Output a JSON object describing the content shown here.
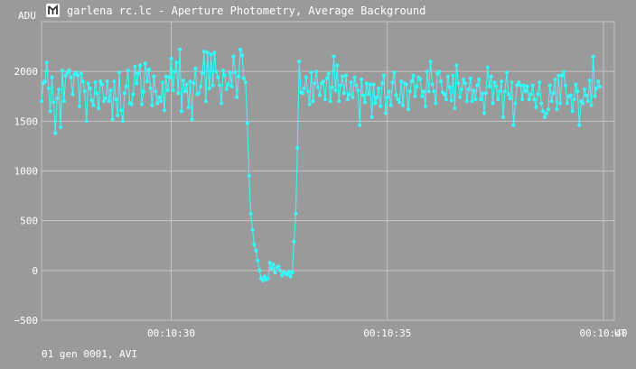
{
  "window": {
    "title": "garlena rc.lc - Aperture Photometry, Average Background",
    "icon": "light-curve-app-icon"
  },
  "footer": {
    "text": "01 gen 0001, AVI"
  },
  "colors": {
    "background": "#9a9a9a",
    "grid": "#c4c4c4",
    "series": "#33ffff",
    "text": "#ffffff"
  },
  "chart_data": {
    "type": "line",
    "title": "garlena rc.lc - Aperture Photometry, Average Background",
    "ylabel": "ADU",
    "xlabel": "UT",
    "ylim": [
      -500,
      2500
    ],
    "yticks": [
      -500,
      0,
      500,
      1000,
      1500,
      2000
    ],
    "xlim_seconds": [
      627.0,
      640.25
    ],
    "xticks": [
      {
        "label": "00:10:30",
        "t": 630
      },
      {
        "label": "00:10:35",
        "t": 635
      },
      {
        "label": "00:10:40",
        "t": 640
      }
    ],
    "grid": true,
    "series": [
      {
        "name": "",
        "t_start_seconds": 627.0,
        "t_step_seconds": 0.04,
        "values": [
          1700,
          1880,
          1900,
          2090,
          1830,
          1600,
          1940,
          1690,
          1380,
          1730,
          1820,
          1440,
          2010,
          1700,
          1960,
          1990,
          2010,
          1940,
          1770,
          1970,
          1990,
          1960,
          1650,
          1980,
          1900,
          1800,
          1500,
          1880,
          1830,
          1710,
          1660,
          1890,
          1780,
          1630,
          1900,
          1870,
          1700,
          1730,
          1900,
          1700,
          1810,
          1520,
          1900,
          1720,
          1560,
          1990,
          1610,
          1500,
          1780,
          1850,
          2010,
          1680,
          1670,
          1770,
          2050,
          1880,
          1980,
          2060,
          1670,
          1800,
          2080,
          1900,
          2020,
          1830,
          1660,
          1950,
          1800,
          1680,
          1740,
          1700,
          1890,
          1610,
          1950,
          1810,
          1940,
          2130,
          1810,
          2000,
          2090,
          1780,
          2220,
          1600,
          1910,
          1800,
          1870,
          1640,
          1900,
          1520,
          1880,
          2030,
          1770,
          1780,
          1850,
          1980,
          2200,
          1700,
          2190,
          1830,
          2170,
          1860,
          2190,
          2000,
          1940,
          1860,
          1680,
          2010,
          1960,
          1820,
          1870,
          1990,
          1850,
          2150,
          1990,
          1740,
          1950,
          2220,
          2160,
          1930,
          1890,
          1480,
          950,
          570,
          410,
          260,
          200,
          100,
          0,
          -80,
          -100,
          -60,
          -90,
          -80,
          80,
          20,
          60,
          -20,
          30,
          40,
          0,
          -50,
          -20,
          -30,
          -40,
          -10,
          -60,
          -20,
          290,
          570,
          1230,
          2100,
          1790,
          1780,
          1830,
          1940,
          1800,
          1670,
          1990,
          1700,
          1880,
          2000,
          1840,
          1760,
          1880,
          1900,
          1720,
          1930,
          1980,
          1700,
          1840,
          2150,
          1810,
          2060,
          1700,
          1860,
          1950,
          1780,
          1960,
          1720,
          1770,
          1890,
          1740,
          1940,
          1860,
          1810,
          1460,
          1920,
          1760,
          1690,
          1880,
          1770,
          1870,
          1540,
          1870,
          1680,
          1740,
          1830,
          1650,
          1880,
          1960,
          1580,
          1740,
          1800,
          1660,
          1890,
          1990,
          1760,
          1720,
          1690,
          1900,
          1660,
          1880,
          1870,
          1620,
          1800,
          1900,
          1960,
          1750,
          1850,
          1940,
          1920,
          1750,
          1800,
          1650,
          2000,
          1800,
          2100,
          1870,
          1800,
          1680,
          1980,
          2000,
          1900,
          1790,
          1770,
          1720,
          1950,
          1840,
          1710,
          1960,
          1630,
          2060,
          1880,
          1740,
          1820,
          1920,
          1880,
          1700,
          1820,
          1930,
          1700,
          1810,
          1720,
          1860,
          1920,
          1720,
          1780,
          1580,
          1780,
          2040,
          1850,
          1950,
          1680,
          1890,
          1850,
          1720,
          1800,
          1900,
          1540,
          1800,
          1990,
          1770,
          1730,
          1890,
          1460,
          1680,
          1860,
          1890,
          1860,
          1720,
          1860,
          1800,
          1850,
          1720,
          1770,
          1860,
          1720,
          1640,
          1770,
          1890,
          1680,
          1600,
          1540,
          1580,
          1620,
          1860,
          1700,
          1780,
          1920,
          1620,
          1960,
          1680,
          1960,
          2000,
          1860,
          1680,
          1750,
          1760,
          1600,
          1720,
          1870,
          1800,
          1460,
          1700,
          1680,
          1820,
          1760,
          1700,
          1910,
          1660,
          2150,
          1750,
          1830,
          1900,
          1850
        ]
      }
    ]
  }
}
